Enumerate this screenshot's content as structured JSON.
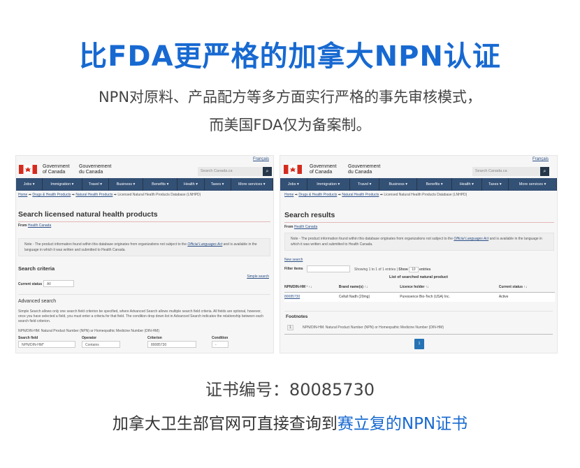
{
  "headline": "比FDA更严格的加拿大NPN认证",
  "subtitle": [
    "NPN对原料、产品配方等多方面实行严格的事先审核模式，",
    "而美国FDA仅为备案制。"
  ],
  "colors": {
    "accent": "#1769d1",
    "nav": "#335075",
    "flag": "#d52b1e"
  },
  "site": {
    "lang": "Français",
    "gov_en": [
      "Government",
      "of Canada"
    ],
    "gov_fr": [
      "Gouvernement",
      "du Canada"
    ],
    "search_placeholder": "Search Canada.ca",
    "search_icon": "magnifier-icon",
    "nav": [
      "Jobs ▾",
      "Immigration ▾",
      "Travel ▾",
      "Business ▾",
      "Benefits ▾",
      "Health ▾",
      "Taxes ▾",
      "More services ▾"
    ],
    "breadcrumb": [
      "Home",
      "Drugs & Health Products",
      "Natural Health Products",
      "Licensed Natural Health Products Database (LNHPD)"
    ],
    "from": "From",
    "from_link": "Health Canada",
    "note_pre": "Note - The product information found within this database originates from organizations not subject to the ",
    "note_link": "Official Languages Act",
    "note_post": " and is available in the language in which it was written and submitted to Health Canada."
  },
  "left": {
    "title": "Search licensed natural health products",
    "criteria": "Search criteria",
    "simple_search": "Simple search",
    "status_label": "Current status",
    "status_value": "All",
    "advanced": "Advanced search",
    "adv_desc": "Simple Search allows only one search field criterion be specified, where Advanced Search allows multiple search field criteria. All fields are optional, however, once you have selected a field, you must enter a criteria for that field. The condition drop down list in Advanced Search indicates the relationship between each search field criterion.",
    "npn_note": "NPN/DIN-HM: Natural Product Number (NPN) or Homeopathic Medicine Number (DIN-HM)",
    "fields": [
      {
        "label": "Search field",
        "value": "NPN/DIN-HM*"
      },
      {
        "label": "Operator",
        "value": "Contains"
      },
      {
        "label": "Criterion",
        "value": "80085730"
      },
      {
        "label": "Condition",
        "value": "-"
      }
    ]
  },
  "right": {
    "title": "Search results",
    "new_search": "New search",
    "filter": "Filter items",
    "showing": "Showing 1 to 1 of 1 entries |",
    "show": "Show",
    "show_value": "10",
    "entries": "entries",
    "caption": "List of searched natural product",
    "columns": [
      "NPN/DIN-HM ¹ ↑↓",
      "Brand name(s) ↑↓",
      "Licence holder ↑↓",
      "Current status ↑↓"
    ],
    "rows": [
      [
        "80085730",
        "Cellull Nadh (20mg)",
        "Puressence Bio-Tech (USA) Inc.",
        "Active"
      ]
    ],
    "footnotes": "Footnotes",
    "footnote_num": "1",
    "footnote_text": "NPN/DIN-HM: Natural Product Number (NPN) or Homeopathic Medicine Number (DIN-HM)",
    "page": "1"
  },
  "cert_line": "证书编号：80085730",
  "query_pre": "加拿大卫生部官网可直接查询到",
  "query_highlight": "赛立复的NPN证书"
}
